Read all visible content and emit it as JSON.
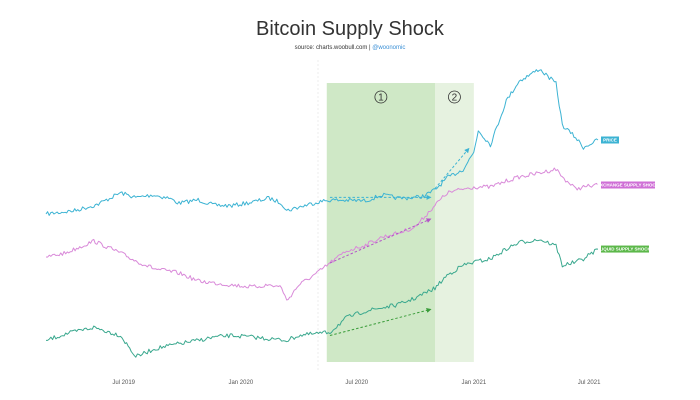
{
  "header": {
    "title": "Bitcoin Supply Shock",
    "subtitle_prefix": "source: charts.woobull.com | ",
    "subtitle_handle": "@woonomic"
  },
  "chart_data": {
    "type": "line",
    "title": "Bitcoin Supply Shock",
    "x_ticks": [
      "Jul 2019",
      "Jan 2020",
      "Jul 2020",
      "Jan 2021",
      "Jul 2021"
    ],
    "x_tick_dates": [
      "2019-07-01",
      "2020-01-01",
      "2020-07-01",
      "2021-01-01",
      "2021-07-01"
    ],
    "x_range": [
      "2019-03-01",
      "2021-07-15"
    ],
    "y_axis": "none (independently normalized series)",
    "grid": false,
    "zones": [
      {
        "label": "1",
        "start": "2020-05-15",
        "end": "2020-11-01",
        "color": "#cfe8c6"
      },
      {
        "label": "2",
        "start": "2020-11-01",
        "end": "2021-01-01",
        "color": "#e6f2e0"
      }
    ],
    "series": [
      {
        "name": "PRICE",
        "color": "#3cb3d3",
        "label_color": "#3cb3d3",
        "x": [
          "2019-03-01",
          "2019-04-15",
          "2019-05-20",
          "2019-06-26",
          "2019-07-20",
          "2019-08-15",
          "2019-09-10",
          "2019-09-26",
          "2019-10-26",
          "2019-11-20",
          "2019-12-18",
          "2020-01-20",
          "2020-02-14",
          "2020-03-05",
          "2020-03-13",
          "2020-04-01",
          "2020-04-30",
          "2020-05-20",
          "2020-06-15",
          "2020-07-15",
          "2020-08-10",
          "2020-09-05",
          "2020-10-01",
          "2020-10-15",
          "2020-11-01",
          "2020-11-20",
          "2020-12-15",
          "2021-01-01",
          "2021-01-08",
          "2021-01-27",
          "2021-02-21",
          "2021-03-13",
          "2021-04-14",
          "2021-05-10",
          "2021-05-20",
          "2021-06-10",
          "2021-06-22",
          "2021-07-15"
        ],
        "y": [
          3.8,
          5.2,
          7.6,
          12.5,
          10.5,
          11.6,
          10.3,
          8.2,
          9.6,
          7.4,
          7.2,
          8.7,
          10.3,
          8.3,
          5.2,
          6.6,
          8.7,
          9.5,
          9.4,
          9.2,
          11.6,
          10.2,
          10.6,
          11.2,
          13.7,
          18.5,
          22.0,
          29.0,
          38.0,
          32.0,
          50.0,
          58.0,
          63.0,
          57.0,
          40.0,
          35.0,
          31.0,
          34.0
        ]
      },
      {
        "name": "EXCHANGE SUPPLY SHOCK",
        "color": "#d98ad9",
        "label_color": "#cf6fd6",
        "x": [
          "2019-03-01",
          "2019-04-01",
          "2019-05-15",
          "2019-06-26",
          "2019-07-20",
          "2019-08-20",
          "2019-09-26",
          "2019-10-26",
          "2019-11-20",
          "2019-12-18",
          "2020-01-20",
          "2020-02-14",
          "2020-03-05",
          "2020-03-13",
          "2020-04-01",
          "2020-04-30",
          "2020-05-20",
          "2020-06-15",
          "2020-07-15",
          "2020-08-10",
          "2020-09-05",
          "2020-10-01",
          "2020-11-01",
          "2020-11-20",
          "2020-12-15",
          "2021-01-01",
          "2021-01-27",
          "2021-02-21",
          "2021-03-13",
          "2021-04-14",
          "2021-05-10",
          "2021-05-20",
          "2021-06-10",
          "2021-06-22",
          "2021-07-15"
        ],
        "y": [
          0.52,
          0.54,
          0.6,
          0.54,
          0.5,
          0.46,
          0.44,
          0.4,
          0.39,
          0.38,
          0.37,
          0.38,
          0.37,
          0.3,
          0.38,
          0.44,
          0.49,
          0.55,
          0.58,
          0.62,
          0.64,
          0.67,
          0.78,
          0.84,
          0.86,
          0.87,
          0.87,
          0.9,
          0.92,
          0.94,
          0.96,
          0.92,
          0.86,
          0.87,
          0.88
        ]
      },
      {
        "name": "LIQUID SUPPLY SHOCK",
        "color": "#3aa88e",
        "label_color": "#5cb84a",
        "x": [
          "2019-03-01",
          "2019-04-01",
          "2019-05-15",
          "2019-06-26",
          "2019-07-20",
          "2019-08-20",
          "2019-09-26",
          "2019-10-26",
          "2019-11-20",
          "2019-12-18",
          "2020-01-20",
          "2020-02-14",
          "2020-03-13",
          "2020-04-01",
          "2020-05-20",
          "2020-06-15",
          "2020-07-15",
          "2020-08-10",
          "2020-09-05",
          "2020-10-01",
          "2020-11-01",
          "2020-11-20",
          "2020-12-15",
          "2021-01-01",
          "2021-01-27",
          "2021-02-21",
          "2021-03-13",
          "2021-04-14",
          "2021-05-10",
          "2021-05-20",
          "2021-06-10",
          "2021-06-22",
          "2021-07-15"
        ],
        "y": [
          0.3,
          0.34,
          0.38,
          0.33,
          0.2,
          0.25,
          0.28,
          0.3,
          0.32,
          0.33,
          0.32,
          0.31,
          0.3,
          0.33,
          0.35,
          0.44,
          0.48,
          0.5,
          0.52,
          0.56,
          0.62,
          0.7,
          0.76,
          0.78,
          0.8,
          0.86,
          0.9,
          0.92,
          0.88,
          0.76,
          0.78,
          0.8,
          0.86
        ]
      }
    ],
    "annotations": [
      {
        "type": "arrow",
        "color": "#3cb3d3",
        "start": {
          "x": "2020-05-20",
          "y": 10.6
        },
        "end": {
          "x": "2020-10-25",
          "y": 10.6
        }
      },
      {
        "type": "arrow",
        "color": "#3cb3d3",
        "start": {
          "x": "2020-11-01",
          "y": 14.2
        },
        "end": {
          "x": "2020-12-24",
          "y": 30.5
        }
      },
      {
        "type": "arrow",
        "color": "#b455c8",
        "start": {
          "x": "2020-05-20",
          "y": 0.49
        },
        "end": {
          "x": "2020-10-25",
          "y": 0.71
        }
      },
      {
        "type": "arrow",
        "color": "#3a9c3a",
        "start": {
          "x": "2020-05-20",
          "y": 0.33
        },
        "end": {
          "x": "2020-10-25",
          "y": 0.49
        }
      }
    ]
  }
}
